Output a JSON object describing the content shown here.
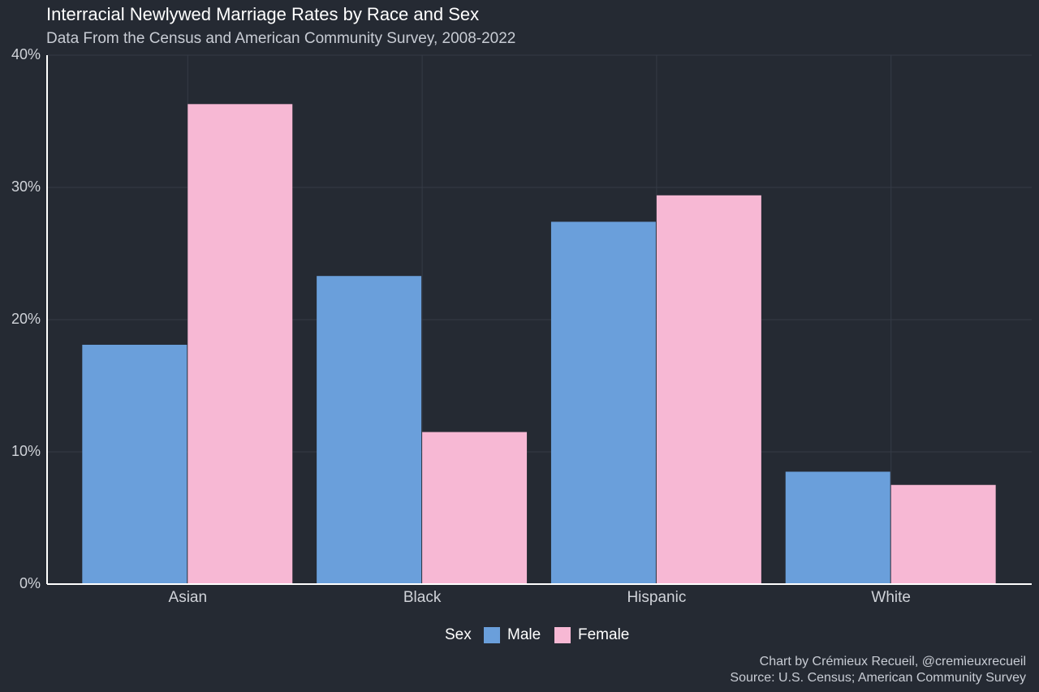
{
  "chart_data": {
    "type": "bar",
    "title": "Interracial Newlywed Marriage Rates by Race and Sex",
    "subtitle": "Data From the Census and American Community Survey, 2008-2022",
    "categories": [
      "Asian",
      "Black",
      "Hispanic",
      "White"
    ],
    "series": [
      {
        "name": "Male",
        "color": "#6a9fdb",
        "values": [
          18.1,
          23.3,
          27.4,
          8.5
        ]
      },
      {
        "name": "Female",
        "color": "#f7b8d4",
        "values": [
          36.3,
          11.5,
          29.4,
          7.5
        ]
      }
    ],
    "legend_title": "Sex",
    "ylim": [
      0,
      40
    ],
    "yticks": [
      {
        "value": 0,
        "label": "0%"
      },
      {
        "value": 10,
        "label": "10%"
      },
      {
        "value": 20,
        "label": "20%"
      },
      {
        "value": 30,
        "label": "30%"
      },
      {
        "value": 40,
        "label": "40%"
      }
    ],
    "grid": true,
    "caption": [
      "Chart by Crémieux Recueil, @cremieuxrecueil",
      "Source: U.S. Census; American Community Survey"
    ]
  }
}
